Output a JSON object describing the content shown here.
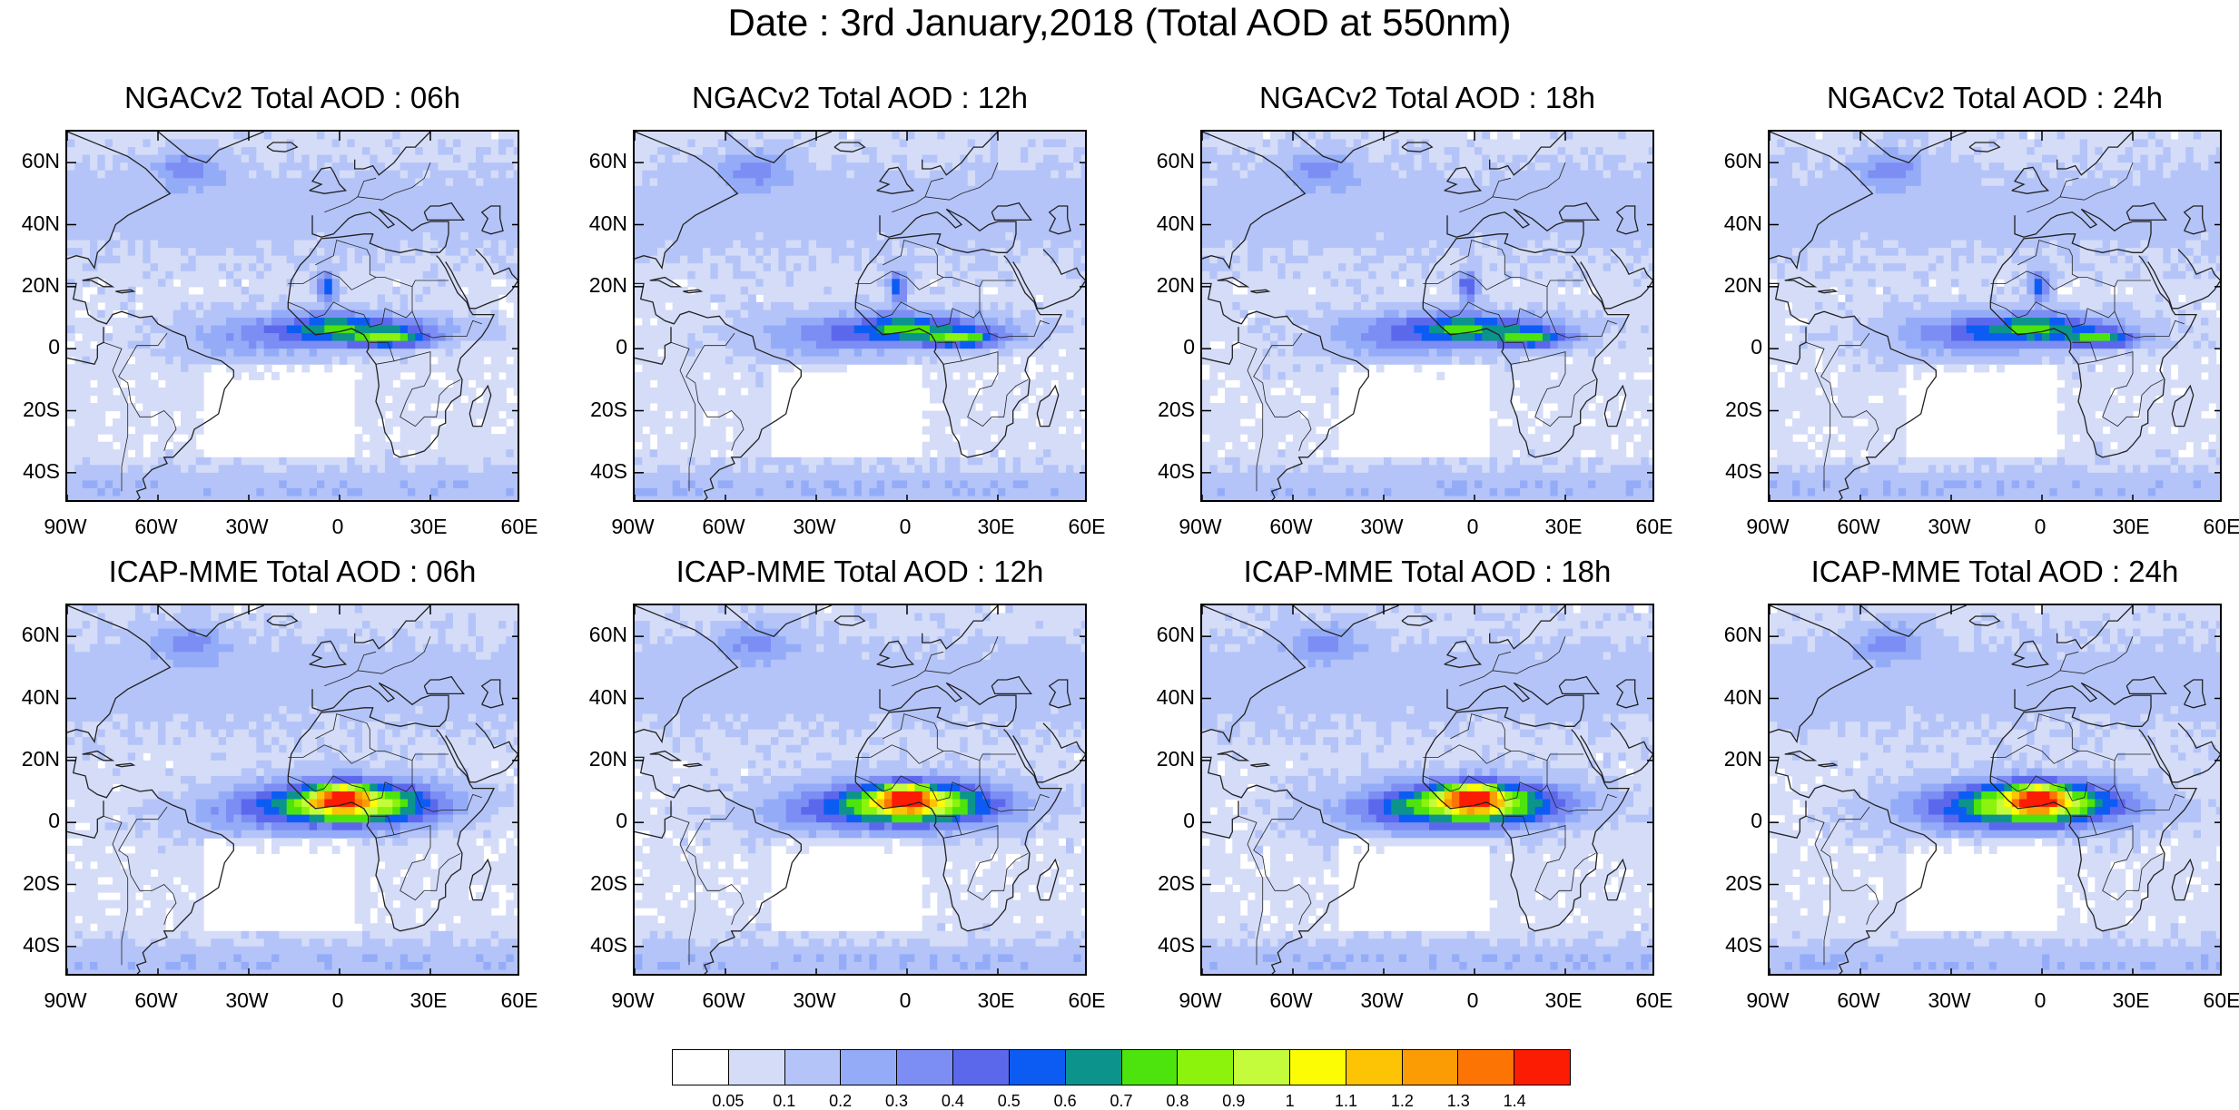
{
  "title": "Date : 3rd January,2018 (Total AOD at 550nm)",
  "panels": [
    {
      "title": "NGACv2 Total AOD : 06h",
      "row": 0,
      "col": 0,
      "model": "ngac"
    },
    {
      "title": "NGACv2 Total AOD : 12h",
      "row": 0,
      "col": 1,
      "model": "ngac"
    },
    {
      "title": "NGACv2 Total AOD : 18h",
      "row": 0,
      "col": 2,
      "model": "ngac"
    },
    {
      "title": "NGACv2 Total AOD : 24h",
      "row": 0,
      "col": 3,
      "model": "ngac"
    },
    {
      "title": "ICAP-MME Total AOD : 06h",
      "row": 1,
      "col": 0,
      "model": "icap"
    },
    {
      "title": "ICAP-MME Total AOD : 12h",
      "row": 1,
      "col": 1,
      "model": "icap"
    },
    {
      "title": "ICAP-MME Total AOD : 18h",
      "row": 1,
      "col": 2,
      "model": "icap"
    },
    {
      "title": "ICAP-MME Total AOD : 24h",
      "row": 1,
      "col": 3,
      "model": "icap"
    }
  ],
  "lat_ticks": [
    "60N",
    "40N",
    "20N",
    "0",
    "20S",
    "40S"
  ],
  "lon_ticks": [
    "90W",
    "60W",
    "30W",
    "0",
    "30E",
    "60E"
  ],
  "colorbar": {
    "labels": [
      "0.05",
      "0.1",
      "0.2",
      "0.3",
      "0.4",
      "0.5",
      "0.6",
      "0.7",
      "0.8",
      "0.9",
      "1",
      "1.1",
      "1.2",
      "1.3",
      "1.4"
    ],
    "colors": [
      "#ffffff",
      "#d4dcf8",
      "#b4c4f8",
      "#94acf8",
      "#7c8ef4",
      "#5c68ec",
      "#0c5cf4",
      "#0c948c",
      "#4ce40c",
      "#8cf40c",
      "#c4fc3c",
      "#fcfc04",
      "#fcc404",
      "#fc9c04",
      "#fc7404",
      "#fc1c04"
    ]
  }
}
